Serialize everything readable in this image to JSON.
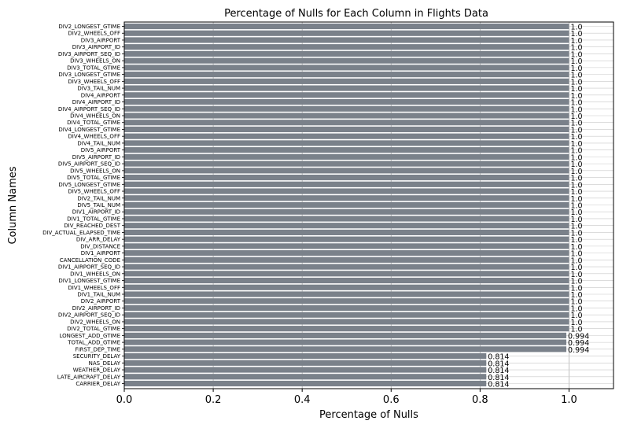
{
  "chart_data": {
    "type": "bar",
    "orientation": "horizontal",
    "title": "Percentage of Nulls for Each Column in Flights Data",
    "xlabel": "Percentage of Nulls",
    "ylabel": "Column Names",
    "xlim": [
      0,
      1.1
    ],
    "xticks": [
      "0.0",
      "0.2",
      "0.4",
      "0.6",
      "0.8",
      "1.0"
    ],
    "grid": true,
    "bar_color": "#7a818a",
    "categories": [
      "DIV2_LONGEST_GTIME",
      "DIV2_WHEELS_OFF",
      "DIV3_AIRPORT",
      "DIV3_AIRPORT_ID",
      "DIV3_AIRPORT_SEQ_ID",
      "DIV3_WHEELS_ON",
      "DIV3_TOTAL_GTIME",
      "DIV3_LONGEST_GTIME",
      "DIV3_WHEELS_OFF",
      "DIV3_TAIL_NUM",
      "DIV4_AIRPORT",
      "DIV4_AIRPORT_ID",
      "DIV4_AIRPORT_SEQ_ID",
      "DIV4_WHEELS_ON",
      "DIV4_TOTAL_GTIME",
      "DIV4_LONGEST_GTIME",
      "DIV4_WHEELS_OFF",
      "DIV4_TAIL_NUM",
      "DIV5_AIRPORT",
      "DIV5_AIRPORT_ID",
      "DIV5_AIRPORT_SEQ_ID",
      "DIV5_WHEELS_ON",
      "DIV5_TOTAL_GTIME",
      "DIV5_LONGEST_GTIME",
      "DIV5_WHEELS_OFF",
      "DIV2_TAIL_NUM",
      "DIV5_TAIL_NUM",
      "DIV1_AIRPORT_ID",
      "DIV1_TOTAL_GTIME",
      "DIV_REACHED_DEST",
      "DIV_ACTUAL_ELAPSED_TIME",
      "DIV_ARR_DELAY",
      "DIV_DISTANCE",
      "DIV1_AIRPORT",
      "CANCELLATION_CODE",
      "DIV1_AIRPORT_SEQ_ID",
      "DIV1_WHEELS_ON",
      "DIV1_LONGEST_GTIME",
      "DIV1_WHEELS_OFF",
      "DIV1_TAIL_NUM",
      "DIV2_AIRPORT",
      "DIV2_AIRPORT_ID",
      "DIV2_AIRPORT_SEQ_ID",
      "DIV2_WHEELS_ON",
      "DIV2_TOTAL_GTIME",
      "LONGEST_ADD_GTIME",
      "TOTAL_ADD_GTIME",
      "FIRST_DEP_TIME",
      "SECURITY_DELAY",
      "NAS_DELAY",
      "WEATHER_DELAY",
      "LATE_AIRCRAFT_DELAY",
      "CARRIER_DELAY"
    ],
    "values": [
      1.0,
      1.0,
      1.0,
      1.0,
      1.0,
      1.0,
      1.0,
      1.0,
      1.0,
      1.0,
      1.0,
      1.0,
      1.0,
      1.0,
      1.0,
      1.0,
      1.0,
      1.0,
      1.0,
      1.0,
      1.0,
      1.0,
      1.0,
      1.0,
      1.0,
      1.0,
      1.0,
      1.0,
      1.0,
      1.0,
      1.0,
      1.0,
      1.0,
      1.0,
      1.0,
      1.0,
      1.0,
      1.0,
      1.0,
      1.0,
      1.0,
      1.0,
      1.0,
      1.0,
      1.0,
      0.994,
      0.994,
      0.994,
      0.814,
      0.814,
      0.814,
      0.814,
      0.814
    ],
    "value_labels": [
      "1.0",
      "1.0",
      "1.0",
      "1.0",
      "1.0",
      "1.0",
      "1.0",
      "1.0",
      "1.0",
      "1.0",
      "1.0",
      "1.0",
      "1.0",
      "1.0",
      "1.0",
      "1.0",
      "1.0",
      "1.0",
      "1.0",
      "1.0",
      "1.0",
      "1.0",
      "1.0",
      "1.0",
      "1.0",
      "1.0",
      "1.0",
      "1.0",
      "1.0",
      "1.0",
      "1.0",
      "1.0",
      "1.0",
      "1.0",
      "1.0",
      "1.0",
      "1.0",
      "1.0",
      "1.0",
      "1.0",
      "1.0",
      "1.0",
      "1.0",
      "1.0",
      "1.0",
      "0.994",
      "0.994",
      "0.994",
      "0.814",
      "0.814",
      "0.814",
      "0.814",
      "0.814"
    ]
  }
}
